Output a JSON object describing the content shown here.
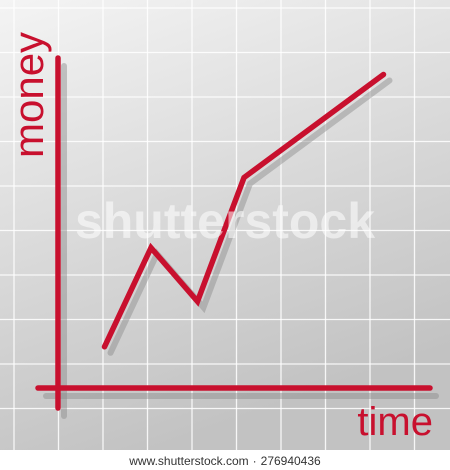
{
  "chart_data": {
    "type": "line",
    "title": "",
    "xlabel": "time",
    "ylabel": "money",
    "grid": true,
    "series": [
      {
        "points": [
          [
            1,
            1
          ],
          [
            2,
            3.4
          ],
          [
            3,
            2.1
          ],
          [
            4,
            5.1
          ],
          [
            7,
            7.6
          ]
        ]
      }
    ],
    "xlim": [
      0,
      8
    ],
    "ylim": [
      0,
      8
    ]
  },
  "watermark": "shutterstock",
  "footer": {
    "site": "www.shutterstock.com",
    "separator": "·",
    "id": "276940436"
  },
  "colors": {
    "line": "#c8102e",
    "axis": "#c8102e",
    "grid": "#ffffff",
    "background_light": "#f2f2f2",
    "background_dark": "#c4c4c4",
    "footer_bg": "#ffffff"
  }
}
